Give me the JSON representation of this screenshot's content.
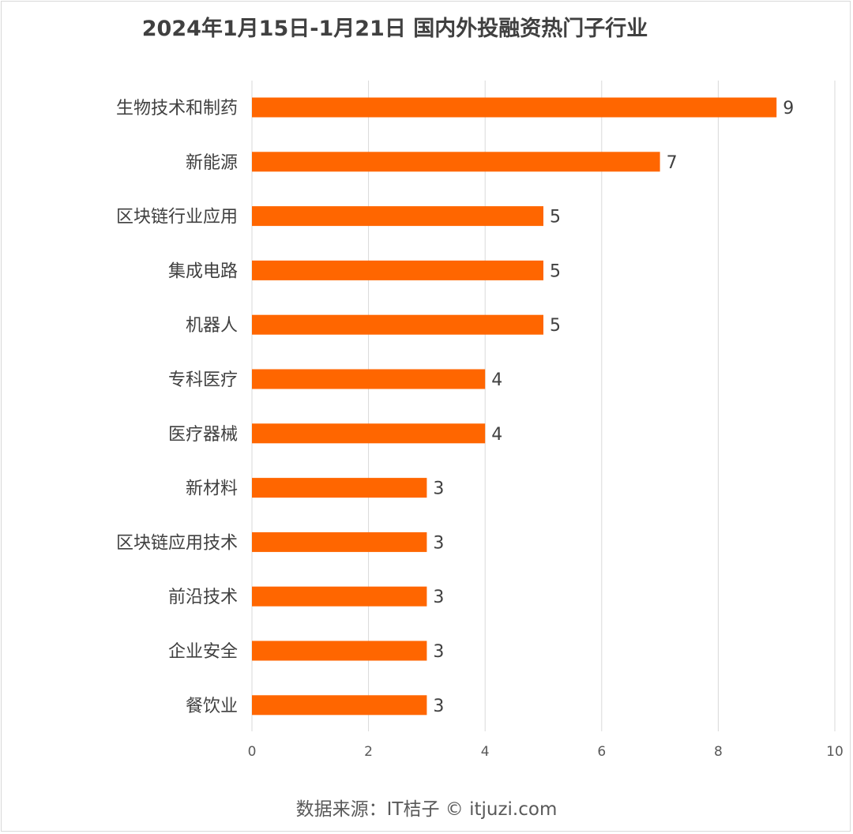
{
  "chart_data": {
    "type": "bar",
    "orientation": "horizontal",
    "title": "2024年1月15日-1月21日 国内外投融资热门子行业",
    "categories": [
      "生物技术和制药",
      "新能源",
      "区块链行业应用",
      "集成电路",
      "机器人",
      "专科医疗",
      "医疗器械",
      "新材料",
      "区块链应用技术",
      "前沿技术",
      "企业安全",
      "餐饮业"
    ],
    "values": [
      9,
      7,
      5,
      5,
      5,
      4,
      4,
      3,
      3,
      3,
      3,
      3
    ],
    "xlabel": "",
    "ylabel": "",
    "xlim": [
      0,
      10
    ],
    "x_ticks": [
      "0",
      "2",
      "4",
      "6",
      "8",
      "10"
    ],
    "grid": true,
    "legend": "none",
    "bar_color": "#ff6600",
    "data_labels": true
  },
  "source_note": "数据来源：IT桔子 © itjuzi.com"
}
